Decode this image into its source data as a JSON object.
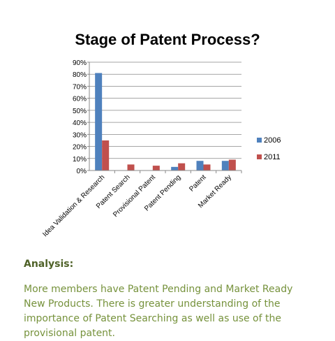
{
  "colors": {
    "series_2006": "#4f81bd",
    "series_2011": "#c0504d",
    "analysis_heading": "#4f6228",
    "analysis_text": "#76923c"
  },
  "chart_data": {
    "type": "bar",
    "title": "Stage of Patent Process?",
    "xlabel": "",
    "ylabel": "",
    "categories": [
      "Idea Validation & Research",
      "Patent Search",
      "Provisional Patent",
      "Patent Pending",
      "Patent",
      "Market Ready"
    ],
    "series": [
      {
        "name": "2006",
        "values": [
          81,
          0,
          0,
          3,
          8,
          8
        ]
      },
      {
        "name": "2011",
        "values": [
          25,
          5,
          4,
          6,
          5,
          9
        ]
      }
    ],
    "ylim": [
      0,
      90
    ],
    "yticks": [
      "0%",
      "10%",
      "20%",
      "30%",
      "40%",
      "50%",
      "60%",
      "70%",
      "80%",
      "90%"
    ],
    "grid": true,
    "legend_position": "right"
  },
  "analysis": {
    "heading": "Analysis:",
    "text": "More members have Patent Pending and Market Ready New Products.   There is greater understanding of the importance of Patent Searching as well as use of the provisional patent."
  }
}
